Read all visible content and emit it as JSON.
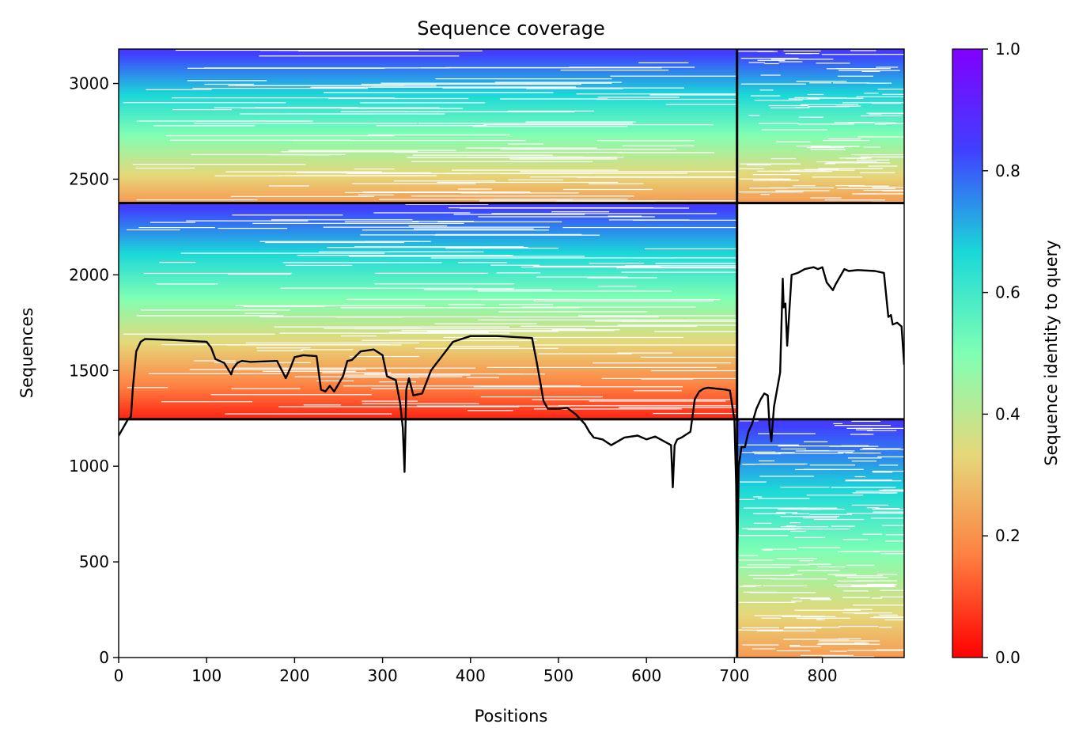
{
  "chart_data": {
    "type": "heatmap",
    "title": "Sequence coverage",
    "xlabel": "Positions",
    "ylabel": "Sequences",
    "xlim": [
      0,
      893
    ],
    "ylim": [
      0,
      3180
    ],
    "xticks": [
      "0",
      "100",
      "200",
      "300",
      "400",
      "500",
      "600",
      "700",
      "800"
    ],
    "yticks": [
      "0",
      "500",
      "1000",
      "1500",
      "2000",
      "2500",
      "3000"
    ],
    "colorbar": {
      "label": "Sequence identity to query",
      "range": [
        0,
        1
      ],
      "ticks": [
        "0.0",
        "0.2",
        "0.4",
        "0.6",
        "0.8",
        "1.0"
      ],
      "colormap": "rainbow",
      "stops": [
        "#ff0000",
        "#ff7f41",
        "#e5d87a",
        "#7fffb4",
        "#1ad8d8",
        "#4040ff",
        "#8000ff"
      ]
    },
    "blocks": [
      {
        "name": "paired",
        "x": [
          0,
          703
        ],
        "y": [
          2375,
          3180
        ],
        "identity_top": 0.85,
        "identity_bottom": 0.22
      },
      {
        "name": "paired-b",
        "x": [
          703,
          893
        ],
        "y": [
          2375,
          3180
        ],
        "identity_top": 0.85,
        "identity_bottom": 0.22
      },
      {
        "name": "unpaired-a",
        "x": [
          0,
          703
        ],
        "y": [
          1245,
          2375
        ],
        "identity_top": 0.85,
        "identity_bottom": 0.05
      },
      {
        "name": "unpaired-b",
        "x": [
          703,
          893
        ],
        "y": [
          0,
          1245
        ],
        "identity_top": 0.85,
        "identity_bottom": 0.22
      }
    ],
    "block_boundaries": {
      "x": 703,
      "y": [
        1245,
        2375
      ]
    },
    "coverage_line": {
      "x": [
        0,
        5,
        10,
        14,
        16,
        20,
        25,
        30,
        60,
        100,
        105,
        110,
        120,
        128,
        130,
        135,
        140,
        150,
        180,
        190,
        195,
        200,
        210,
        225,
        230,
        235,
        240,
        245,
        255,
        260,
        265,
        275,
        290,
        300,
        305,
        315,
        320,
        323,
        325,
        327,
        330,
        335,
        345,
        355,
        360,
        365,
        380,
        400,
        430,
        470,
        475,
        480,
        483,
        488,
        500,
        510,
        520,
        530,
        535,
        540,
        550,
        560,
        575,
        590,
        600,
        610,
        620,
        628,
        630,
        632,
        635,
        640,
        650,
        655,
        660,
        665,
        670,
        680,
        690,
        695,
        700,
        702,
        703,
        705,
        708,
        712,
        716,
        720,
        725,
        730,
        734,
        738,
        740,
        742,
        745,
        752,
        755,
        756,
        758,
        760,
        765,
        772,
        780,
        790,
        795,
        800,
        805,
        812,
        815,
        820,
        825,
        830,
        840,
        860,
        870,
        875,
        878,
        880,
        885,
        890,
        893
      ],
      "y": [
        1160,
        1200,
        1240,
        1260,
        1400,
        1600,
        1650,
        1665,
        1660,
        1650,
        1620,
        1560,
        1540,
        1480,
        1510,
        1540,
        1550,
        1545,
        1550,
        1460,
        1510,
        1570,
        1580,
        1575,
        1400,
        1390,
        1420,
        1390,
        1470,
        1550,
        1555,
        1600,
        1610,
        1580,
        1470,
        1450,
        1330,
        1200,
        970,
        1400,
        1460,
        1370,
        1380,
        1500,
        1530,
        1560,
        1650,
        1680,
        1680,
        1670,
        1550,
        1420,
        1340,
        1300,
        1300,
        1305,
        1270,
        1220,
        1180,
        1150,
        1140,
        1110,
        1150,
        1160,
        1140,
        1155,
        1130,
        1110,
        890,
        1110,
        1140,
        1150,
        1180,
        1350,
        1390,
        1405,
        1410,
        1405,
        1400,
        1395,
        1240,
        900,
        420,
        1000,
        1100,
        1100,
        1180,
        1220,
        1300,
        1350,
        1380,
        1370,
        1200,
        1130,
        1310,
        1490,
        1980,
        1830,
        1850,
        1630,
        2000,
        2010,
        2030,
        2040,
        2030,
        2040,
        1960,
        1920,
        1950,
        1990,
        2030,
        2020,
        2025,
        2020,
        2010,
        1780,
        1790,
        1740,
        1750,
        1730,
        1530
      ]
    }
  }
}
